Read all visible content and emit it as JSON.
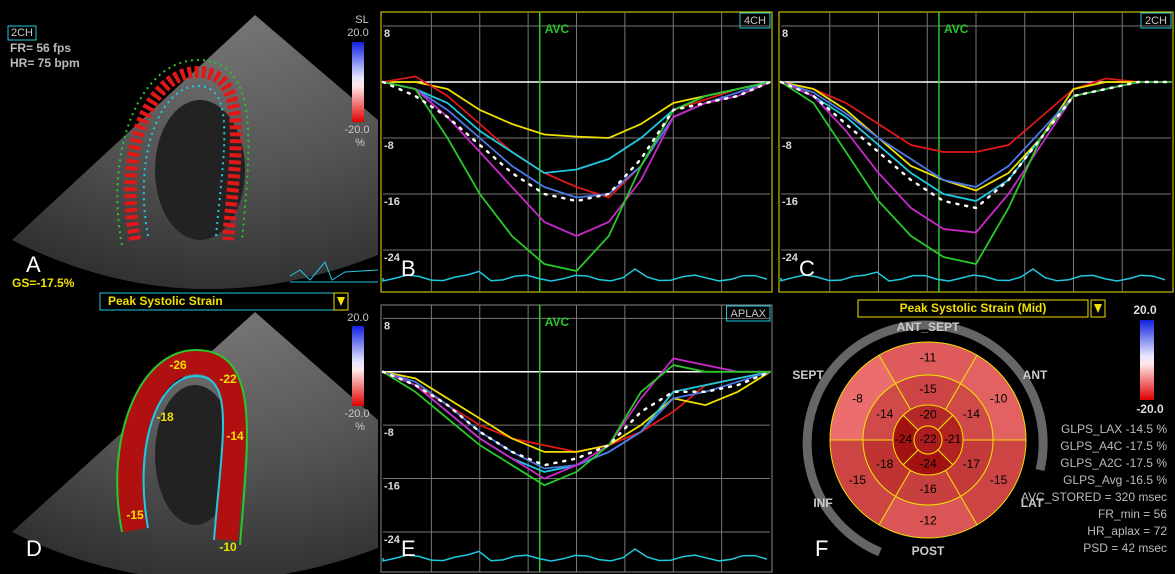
{
  "panel_a": {
    "view": "2CH",
    "frame_rate": "FR= 56 fps",
    "heart_rate": "HR= 75 bpm",
    "scale_title": "SL",
    "scale_max": "20.0",
    "scale_min": "-20.0",
    "scale_unit": "%",
    "panel_label": "A",
    "global_strain": "GS=-17.5%"
  },
  "panel_d": {
    "dropdown": "Peak Systolic Strain",
    "scale_max": "20.0",
    "scale_min": "-20.0",
    "scale_unit": "%",
    "panel_label": "D",
    "segment_labels": [
      -26,
      -22,
      -18,
      -14,
      -15,
      -10
    ]
  },
  "chart_data": [
    {
      "type": "line",
      "view": "4CH",
      "annotation": "AVC",
      "panel_label": "B",
      "grid": true,
      "categories": [
        null,
        null,
        null,
        null,
        null,
        null,
        null,
        null,
        null,
        null,
        null,
        null,
        null
      ],
      "ylim": [
        -30,
        10
      ],
      "yticks": [
        8,
        -8,
        -16,
        -24
      ],
      "series": [
        {
          "color": "#f0e000",
          "values": [
            0,
            0,
            -1,
            -4,
            -6,
            -7.5,
            -7.8,
            -8,
            -6,
            -3,
            -2,
            -1,
            0
          ]
        },
        {
          "color": "#e01818",
          "values": [
            0,
            0.8,
            -2,
            -6,
            -10,
            -13,
            -15,
            -16.5,
            -12,
            -4,
            -2.5,
            -1,
            0
          ]
        },
        {
          "color": "#20c8e0",
          "values": [
            0,
            -1,
            -3,
            -7,
            -10,
            -13,
            -12.5,
            -11,
            -8,
            -4,
            -2,
            -1,
            0
          ]
        },
        {
          "color": "#4a78e8",
          "values": [
            0,
            -1,
            -4,
            -8,
            -12,
            -15,
            -16.5,
            -16,
            -12,
            -5,
            -3,
            -1.5,
            0
          ]
        },
        {
          "color": "#c828c8",
          "values": [
            0,
            -1,
            -5,
            -10,
            -15,
            -20,
            -22,
            -20,
            -14,
            -5,
            -3,
            -2,
            0
          ]
        },
        {
          "color": "#28c828",
          "values": [
            0,
            -1,
            -8,
            -16,
            -22,
            -26,
            -27,
            -22,
            -12,
            -4,
            -2,
            -1,
            0
          ]
        },
        {
          "color": "#ffffff",
          "style": "dotted",
          "values": [
            0,
            -2,
            -5,
            -9,
            -13,
            -16,
            -17,
            -16,
            -11,
            -4,
            -3,
            -2,
            0
          ]
        }
      ]
    },
    {
      "type": "line",
      "view": "2CH",
      "annotation": "AVC",
      "panel_label": "C",
      "grid": true,
      "categories": [
        null,
        null,
        null,
        null,
        null,
        null,
        null,
        null,
        null,
        null,
        null,
        null,
        null
      ],
      "ylim": [
        -30,
        10
      ],
      "yticks": [
        8,
        -8,
        -16,
        -24
      ],
      "series": [
        {
          "color": "#e01818",
          "values": [
            0,
            -1,
            -3,
            -6,
            -9,
            -10,
            -10,
            -9,
            -5,
            -1,
            0.5,
            0,
            0
          ]
        },
        {
          "color": "#f0e000",
          "values": [
            0,
            -1,
            -4,
            -8,
            -12,
            -14,
            -15.5,
            -13,
            -8,
            -1,
            0,
            0,
            0
          ]
        },
        {
          "color": "#20c8e0",
          "values": [
            0,
            -2,
            -5,
            -9,
            -13,
            -16,
            -17,
            -14,
            -8,
            -2,
            -1,
            0,
            0
          ]
        },
        {
          "color": "#4a78e8",
          "values": [
            0,
            -1.5,
            -4.5,
            -8,
            -11,
            -14,
            -15,
            -12,
            -7,
            -2,
            -1,
            0,
            0
          ]
        },
        {
          "color": "#c828c8",
          "values": [
            0,
            -2,
            -7,
            -13,
            -18,
            -21,
            -21.5,
            -16,
            -9,
            -2,
            -1,
            0,
            0
          ]
        },
        {
          "color": "#28c828",
          "values": [
            0,
            -3,
            -10,
            -17,
            -22,
            -25,
            -26,
            -18,
            -8,
            -2,
            -1,
            0,
            0
          ]
        },
        {
          "color": "#ffffff",
          "style": "dotted",
          "values": [
            0,
            -2,
            -6,
            -10,
            -14,
            -17,
            -18,
            -14,
            -8,
            -2,
            -1,
            0,
            0
          ]
        }
      ]
    },
    {
      "type": "line",
      "view": "APLAX",
      "annotation": "AVC",
      "panel_label": "E",
      "grid": true,
      "categories": [
        null,
        null,
        null,
        null,
        null,
        null,
        null,
        null,
        null,
        null,
        null,
        null,
        null
      ],
      "ylim": [
        -30,
        10
      ],
      "yticks": [
        8,
        -8,
        -16,
        -24
      ],
      "series": [
        {
          "color": "#e01818",
          "values": [
            0,
            -2,
            -5,
            -8,
            -10,
            -11,
            -12,
            -11,
            -9,
            -6,
            -2,
            -1,
            0
          ]
        },
        {
          "color": "#f0e000",
          "values": [
            0,
            -1,
            -4,
            -7,
            -10,
            -12,
            -12,
            -11,
            -8,
            -4,
            -5,
            -3,
            0
          ]
        },
        {
          "color": "#20c8e0",
          "values": [
            0,
            -2,
            -6,
            -10,
            -13,
            -15,
            -14,
            -12,
            -9,
            -3,
            -2,
            -1,
            0
          ]
        },
        {
          "color": "#4a78e8",
          "values": [
            0,
            -1.5,
            -5,
            -9,
            -12,
            -14.5,
            -14,
            -12,
            -9,
            -4,
            -3,
            -1.5,
            0
          ]
        },
        {
          "color": "#c828c8",
          "values": [
            0,
            -2,
            -6,
            -10,
            -13,
            -16,
            -14,
            -11,
            -4,
            2,
            1,
            0,
            0
          ]
        },
        {
          "color": "#28c828",
          "values": [
            0,
            -3,
            -7,
            -11,
            -14,
            -17,
            -15,
            -11,
            -3,
            1,
            0,
            0,
            0
          ]
        },
        {
          "color": "#ffffff",
          "style": "dotted",
          "values": [
            0,
            -2,
            -5,
            -9,
            -12,
            -14,
            -13,
            -11,
            -6,
            -3,
            -3,
            -2,
            0
          ]
        }
      ]
    }
  ],
  "bullseye": {
    "title": "Peak Systolic Strain (Mid)",
    "scale_max": "20.0",
    "scale_min": "-20.0",
    "panel_label": "F",
    "walls": [
      "ANT_SEPT",
      "SEPT",
      "ANT",
      "INF",
      "LAT",
      "POST"
    ],
    "segments": [
      -11,
      -10,
      -15,
      -12,
      -15,
      -8,
      -15,
      -14,
      -17,
      -16,
      -18,
      -14,
      -20,
      -21,
      -24,
      -24,
      -22
    ],
    "stats": [
      "GLPS_LAX -14.5 %",
      "GLPS_A4C -17.5 %",
      "GLPS_A2C -17.5 %",
      "GLPS_Avg -16.5 %",
      "AVC_STORED = 320 msec",
      "FR_min = 56",
      "HR_aplax = 72",
      "PSD = 42 msec"
    ]
  }
}
